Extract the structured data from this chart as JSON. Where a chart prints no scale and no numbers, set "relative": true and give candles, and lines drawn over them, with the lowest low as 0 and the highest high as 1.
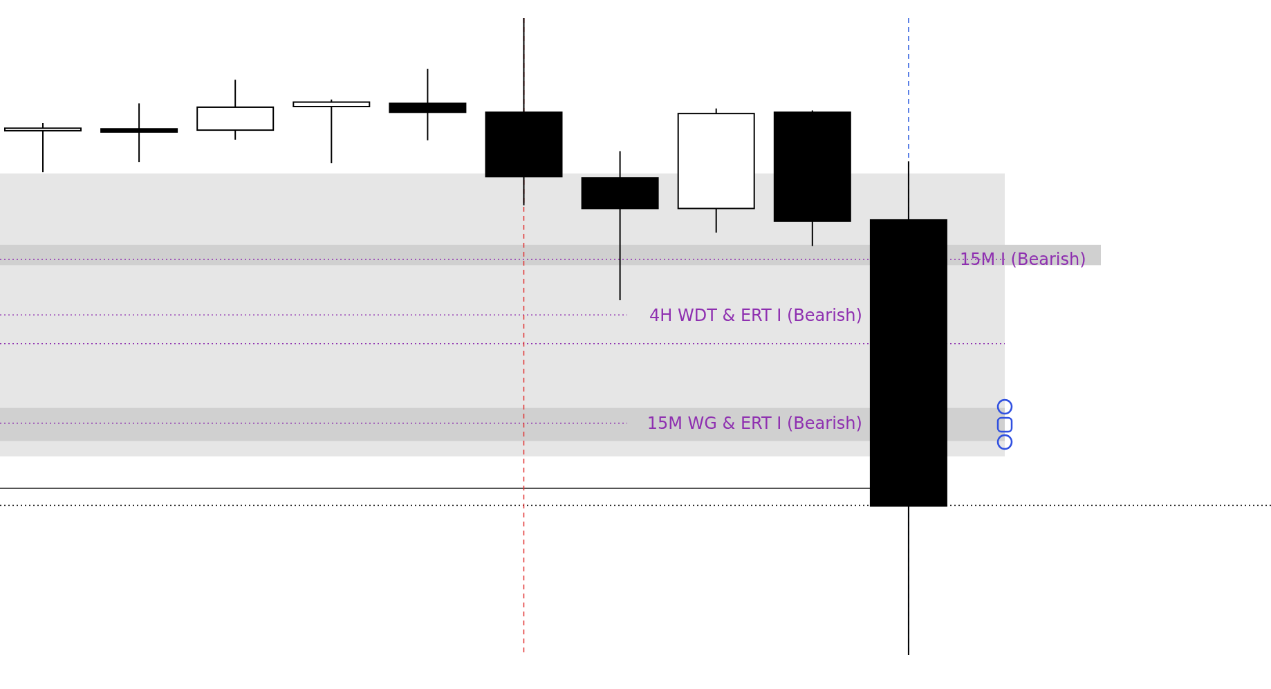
{
  "chart_data": {
    "type": "candlestick",
    "relative": true,
    "categories": [
      null,
      null,
      null,
      null,
      null,
      null,
      null,
      null,
      null,
      null
    ],
    "ohlc": [
      [
        0.823,
        0.835,
        0.758,
        0.827
      ],
      [
        0.826,
        0.866,
        0.774,
        0.821
      ],
      [
        0.824,
        0.903,
        0.809,
        0.86
      ],
      [
        0.861,
        0.872,
        0.772,
        0.868
      ],
      [
        0.866,
        0.92,
        0.808,
        0.852
      ],
      [
        0.852,
        1,
        0.706,
        0.751
      ],
      [
        0.749,
        0.791,
        0.557,
        0.701
      ],
      [
        0.701,
        0.858,
        0.663,
        0.85
      ],
      [
        0.852,
        0.855,
        0.642,
        0.681
      ],
      [
        0.683,
        0.775,
        0,
        0.234
      ]
    ],
    "bands": [
      {
        "axis": "y",
        "from": 0.312,
        "to": 0.756,
        "color": "#e6e6e6"
      },
      {
        "axis": "y",
        "from": 0.612,
        "to": 0.644,
        "color": "#d0d0d0"
      },
      {
        "axis": "y",
        "from": 0.336,
        "to": 0.388,
        "color": "#d0d0d0"
      }
    ],
    "ref_lines": [
      {
        "axis": "y",
        "value": 0.621,
        "label": "15M I (Bearish)",
        "color": "#8e2fb0",
        "line_style": "dotted"
      },
      {
        "axis": "y",
        "value": 0.534,
        "label": "4H WDT & ERT I (Bearish)",
        "color": "#8e2fb0",
        "line_style": "dotted"
      },
      {
        "axis": "y",
        "value": 0.489,
        "color": "#8e2fb0",
        "line_style": "dotted"
      },
      {
        "axis": "y",
        "value": 0.364,
        "label": "15M WG & ERT I (Bearish)",
        "color": "#8e2fb0",
        "line_style": "dotted"
      },
      {
        "axis": "y",
        "value": 0.262,
        "color": "#000000",
        "line_style": "solid"
      },
      {
        "axis": "y",
        "value": 0.235,
        "color": "#000000",
        "line_style": "dotted"
      }
    ]
  }
}
